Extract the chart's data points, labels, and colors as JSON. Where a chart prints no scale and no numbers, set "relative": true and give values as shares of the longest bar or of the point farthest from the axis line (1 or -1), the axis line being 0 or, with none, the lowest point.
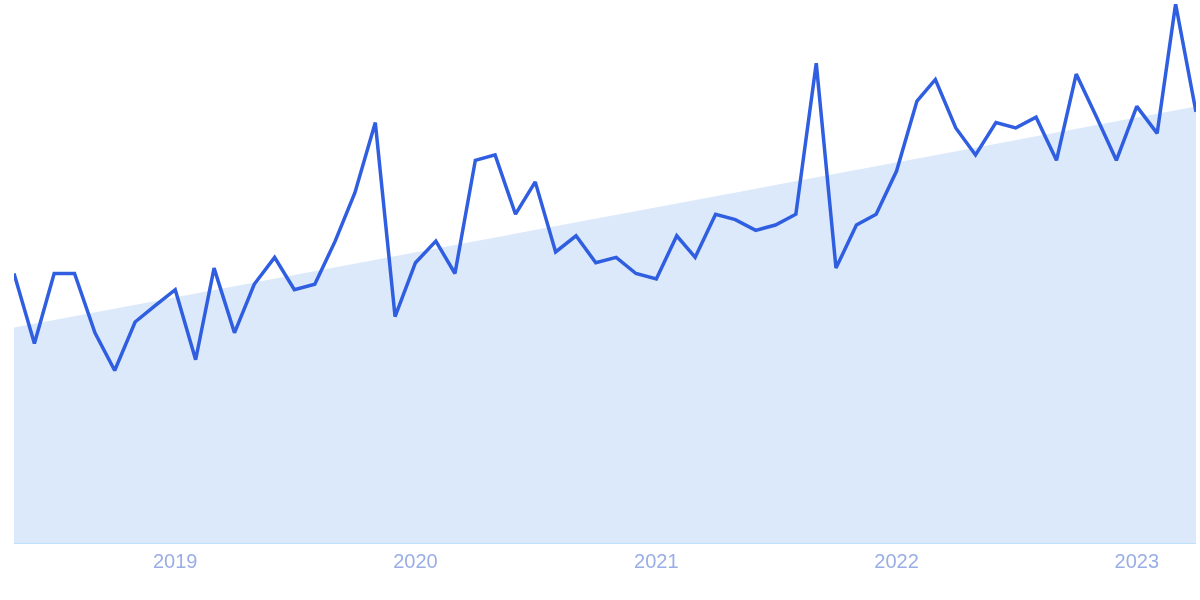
{
  "chart_data": {
    "type": "line",
    "relative": true,
    "marker": "none",
    "line_style": "solid",
    "x": [
      "2018-05",
      "2018-06",
      "2018-07",
      "2018-08",
      "2018-09",
      "2018-10",
      "2018-11",
      "2018-12",
      "2019-01",
      "2019-02",
      "2019-03",
      "2019-04",
      "2019-05",
      "2019-06",
      "2019-07",
      "2019-08",
      "2019-09",
      "2019-10",
      "2019-11",
      "2019-12",
      "2020-01",
      "2020-02",
      "2020-03",
      "2020-04",
      "2020-05",
      "2020-06",
      "2020-07",
      "2020-08",
      "2020-09",
      "2020-10",
      "2020-11",
      "2020-12",
      "2021-01",
      "2021-02",
      "2021-03",
      "2021-04",
      "2021-05",
      "2021-06",
      "2021-07",
      "2021-08",
      "2021-09",
      "2021-10",
      "2021-11",
      "2021-12",
      "2022-01",
      "2022-02",
      "2022-03",
      "2022-04",
      "2022-05",
      "2022-06",
      "2022-07",
      "2022-08",
      "2022-09",
      "2022-10",
      "2022-11",
      "2022-12",
      "2023-01",
      "2023-02",
      "2023-03",
      "2023-04"
    ],
    "xlim": [
      "2018-05",
      "2023-04"
    ],
    "xticks": [
      "2019",
      "2020",
      "2021",
      "2022",
      "2023"
    ],
    "series": [
      {
        "type": "area",
        "color": "#dce9fa",
        "x": [
          "2018-05",
          "2023-04"
        ],
        "values": [
          0.4,
          0.81
        ]
      },
      {
        "color": "#2f5fe0",
        "values": [
          0.5,
          0.37,
          0.5,
          0.5,
          0.39,
          0.32,
          0.41,
          0.44,
          0.47,
          0.34,
          0.51,
          0.39,
          0.48,
          0.53,
          0.47,
          0.48,
          0.56,
          0.65,
          0.78,
          0.42,
          0.52,
          0.56,
          0.5,
          0.71,
          0.72,
          0.61,
          0.67,
          0.54,
          0.57,
          0.52,
          0.53,
          0.5,
          0.49,
          0.57,
          0.53,
          0.61,
          0.6,
          0.58,
          0.59,
          0.61,
          0.89,
          0.51,
          0.59,
          0.61,
          0.69,
          0.82,
          0.86,
          0.77,
          0.72,
          0.78,
          0.77,
          0.79,
          0.71,
          0.87,
          0.79,
          0.71,
          0.81,
          0.76,
          1,
          0.8
        ]
      }
    ]
  }
}
